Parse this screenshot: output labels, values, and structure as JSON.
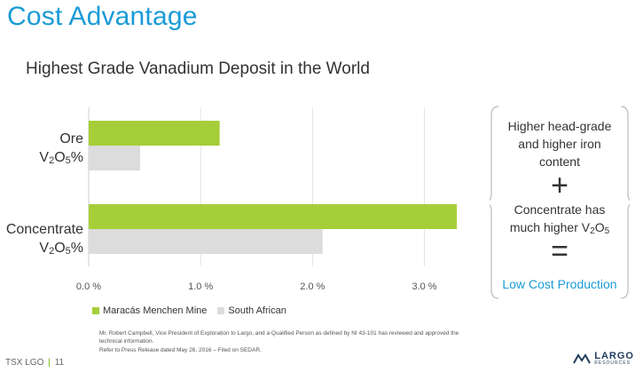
{
  "slide": {
    "title": "Cost Advantage",
    "subtitle": "Highest Grade Vanadium Deposit in the World"
  },
  "chart_data": {
    "type": "bar",
    "orientation": "horizontal",
    "categories": [
      "Ore V2O5%",
      "Concentrate V2O5%"
    ],
    "series": [
      {
        "name": "Maracás Menchen Mine",
        "values": [
          1.17,
          3.29
        ],
        "color": "#a6ce39"
      },
      {
        "name": "South African",
        "values": [
          0.46,
          2.09
        ],
        "color": "#dcdcdc"
      }
    ],
    "xlim": [
      0,
      3.4
    ],
    "x_ticks": [
      0.0,
      1.0,
      2.0,
      3.0
    ],
    "x_tick_labels": [
      "0.0 %",
      "1.0 %",
      "2.0 %",
      "3.0 %"
    ],
    "grid": true,
    "legend_position": "bottom-left"
  },
  "labels": {
    "ore_line1": "Ore",
    "ore_line2_main": "V",
    "ore_line2_sub1": "2",
    "ore_line2_mid": "O",
    "ore_line2_sub2": "5",
    "ore_line2_tail": "%",
    "conc_line1": "Concentrate",
    "conc_line2_main": "V",
    "conc_line2_sub1": "2",
    "conc_line2_mid": "O",
    "conc_line2_sub2": "5",
    "conc_line2_tail": "%"
  },
  "callout": {
    "line1": "Higher head-grade",
    "line2": "and higher iron",
    "line3": "content",
    "plus": "+",
    "line4": "Concentrate has",
    "line5_main": "much higher V",
    "line5_sub1": "2",
    "line5_mid": "O",
    "line5_sub2": "5",
    "equals": "=",
    "result": "Low Cost Production"
  },
  "footnotes": {
    "line1": "Mr. Robert Campbell, Vice President of Exploration to Largo, and a Qualified Person as defined by NI 43-101 has reviewed and approved the technical information.",
    "line2": "Refer to Press Release dated May 26, 2016 – Filed on SEDAR."
  },
  "footer": {
    "ticker": "TSX LGO",
    "separator": "|",
    "page": "11",
    "logo_name": "LARGO",
    "logo_sub": "RESOURCES"
  },
  "colors": {
    "accent": "#1a9bd7",
    "green": "#a6ce39",
    "grey": "#dcdcdc"
  }
}
